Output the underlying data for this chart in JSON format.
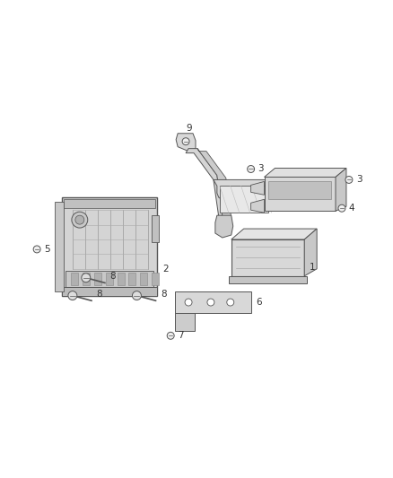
{
  "background_color": "#ffffff",
  "fig_width": 4.38,
  "fig_height": 5.33,
  "dpi": 100,
  "line_color": "#555555",
  "light_line": "#888888",
  "text_color": "#333333",
  "face_light": "#e8e8e8",
  "face_mid": "#d0d0d0",
  "face_dark": "#b8b8b8",
  "label_fontsize": 7.5
}
